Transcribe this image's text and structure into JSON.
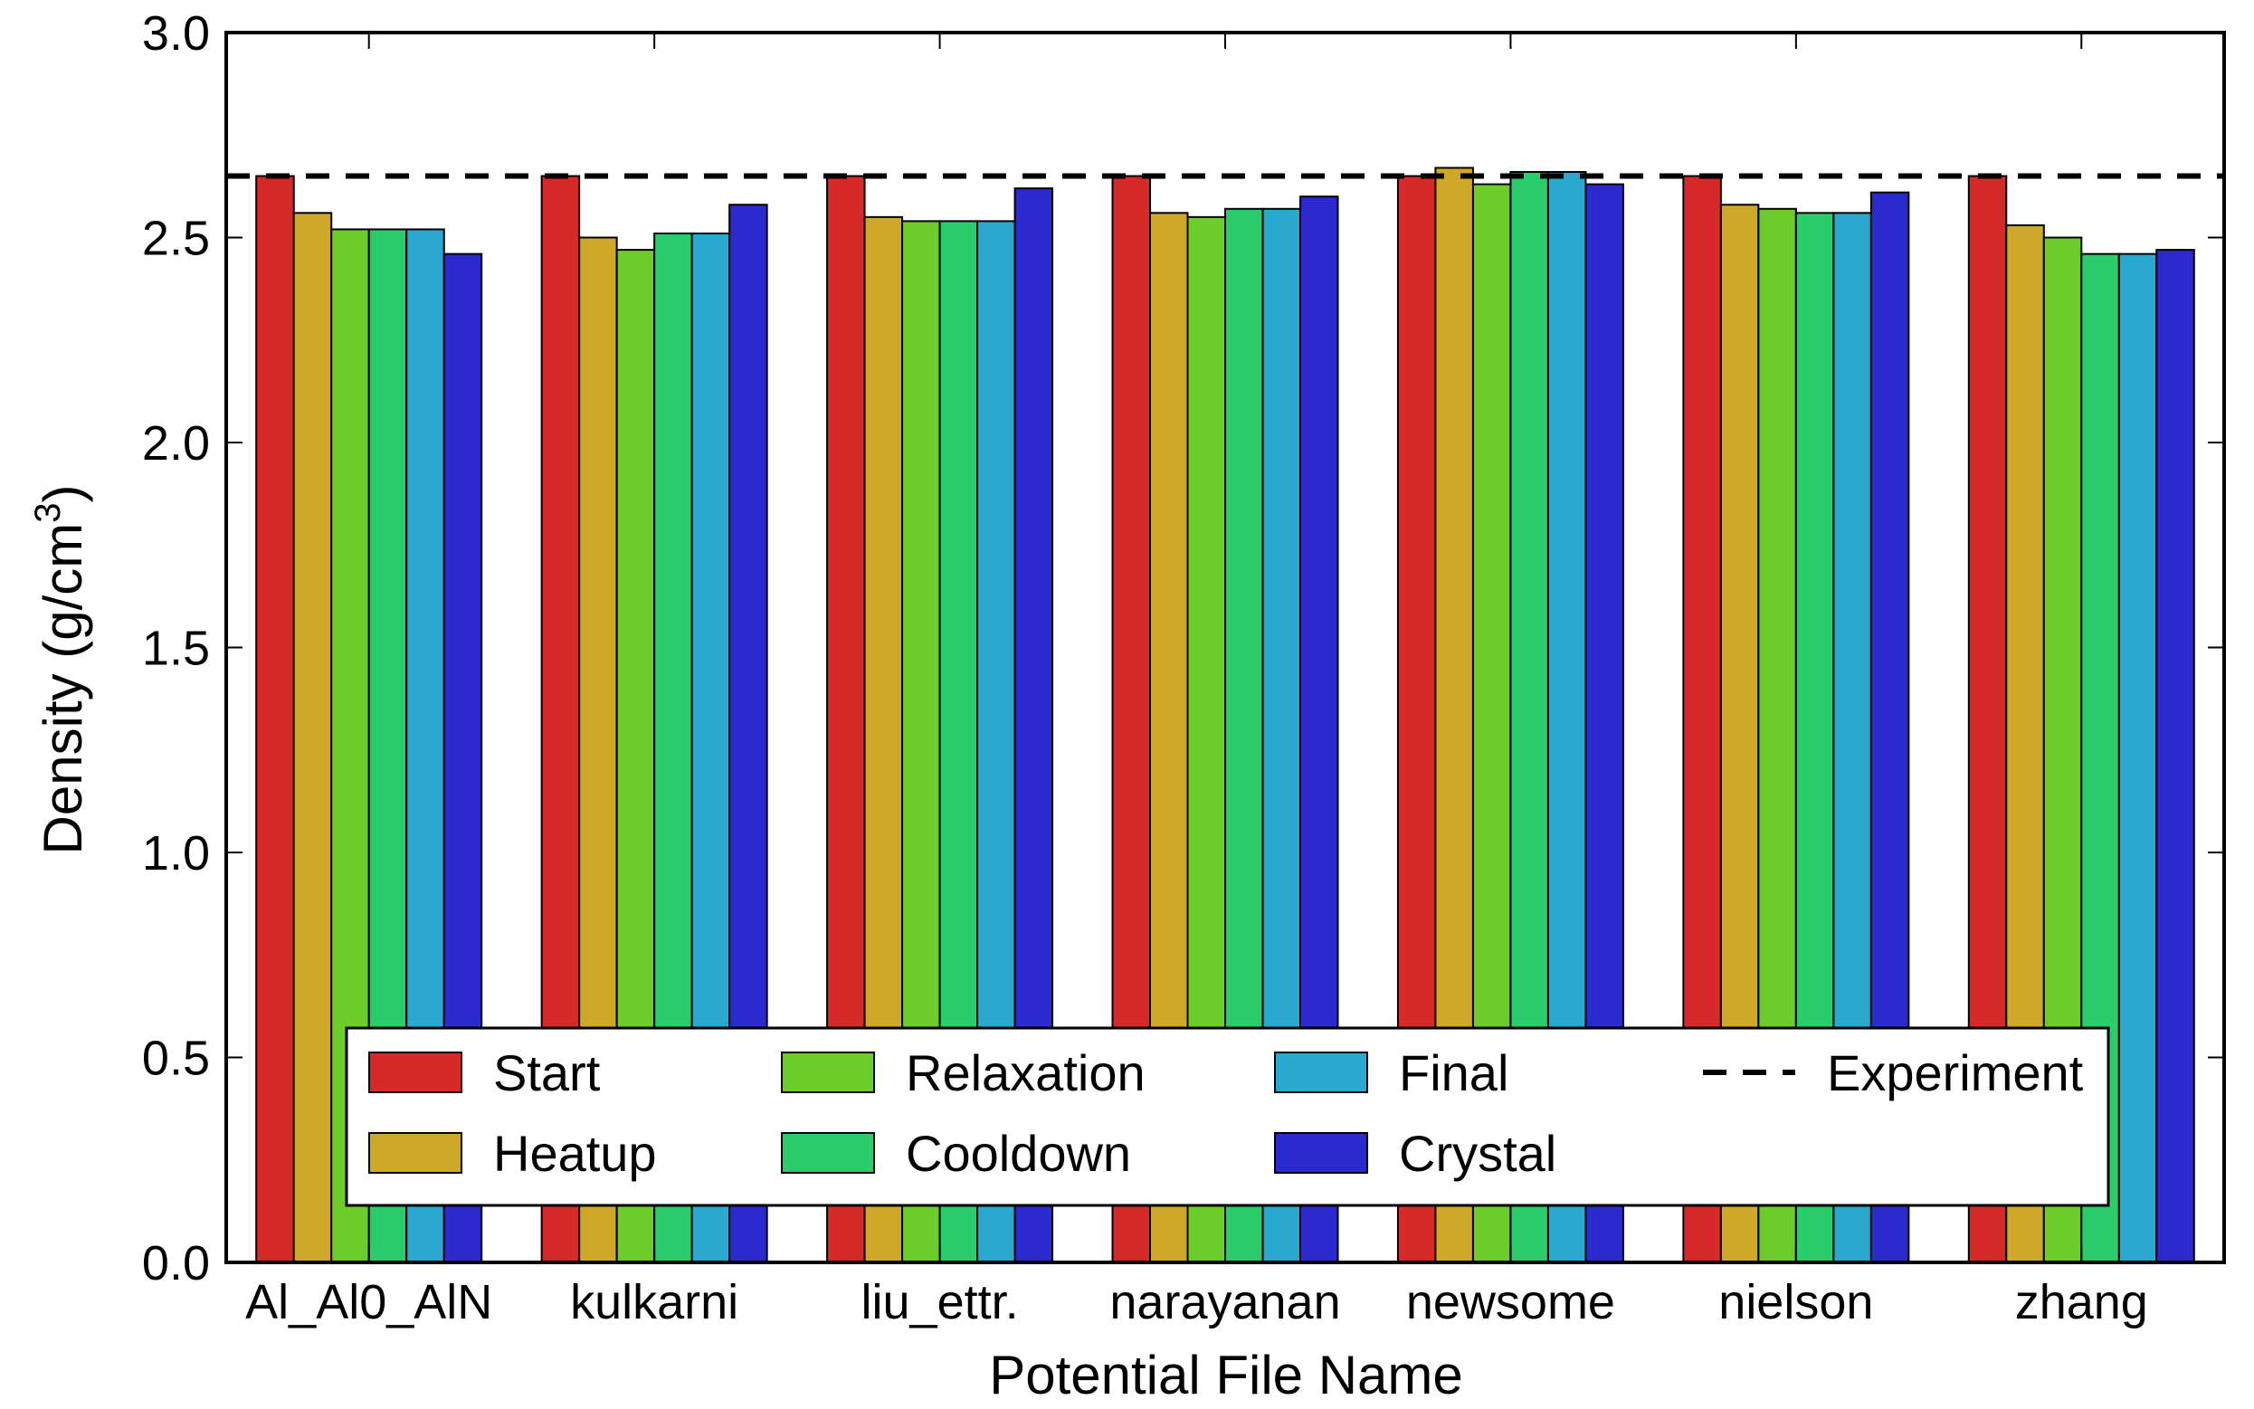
{
  "chart_data": {
    "type": "bar",
    "title": "",
    "xlabel": "Potential File Name",
    "ylabel": "Density (g/cm",
    "ylabel_superscript": "3",
    "ylabel_close": ")",
    "ylim": [
      0.0,
      3.0
    ],
    "yticks": [
      "0.0",
      "0.5",
      "1.0",
      "1.5",
      "2.0",
      "2.5",
      "3.0"
    ],
    "grid": false,
    "legend_position": "bottom-center",
    "categories": [
      "Al_Al0_AlN",
      "kulkarni",
      "liu_ettr.",
      "narayanan",
      "newsome",
      "nielson",
      "zhang"
    ],
    "series": [
      {
        "name": "Start",
        "color": "#d62a2a",
        "values": [
          2.65,
          2.65,
          2.65,
          2.65,
          2.65,
          2.65,
          2.65
        ]
      },
      {
        "name": "Heatup",
        "color": "#cfa82a",
        "values": [
          2.56,
          2.5,
          2.55,
          2.56,
          2.67,
          2.58,
          2.53
        ]
      },
      {
        "name": "Relaxation",
        "color": "#6bcc2a",
        "values": [
          2.52,
          2.47,
          2.54,
          2.55,
          2.63,
          2.57,
          2.5
        ]
      },
      {
        "name": "Cooldown",
        "color": "#2acc6b",
        "values": [
          2.52,
          2.51,
          2.54,
          2.57,
          2.66,
          2.56,
          2.46
        ]
      },
      {
        "name": "Final",
        "color": "#2aa8cf",
        "values": [
          2.52,
          2.51,
          2.54,
          2.57,
          2.66,
          2.56,
          2.46
        ]
      },
      {
        "name": "Crystal",
        "color": "#2a2acf",
        "values": [
          2.46,
          2.58,
          2.62,
          2.6,
          2.63,
          2.61,
          2.47
        ]
      }
    ],
    "reference_line": {
      "name": "Experiment",
      "value": 2.65,
      "style": "dashed",
      "color": "#000000"
    }
  }
}
